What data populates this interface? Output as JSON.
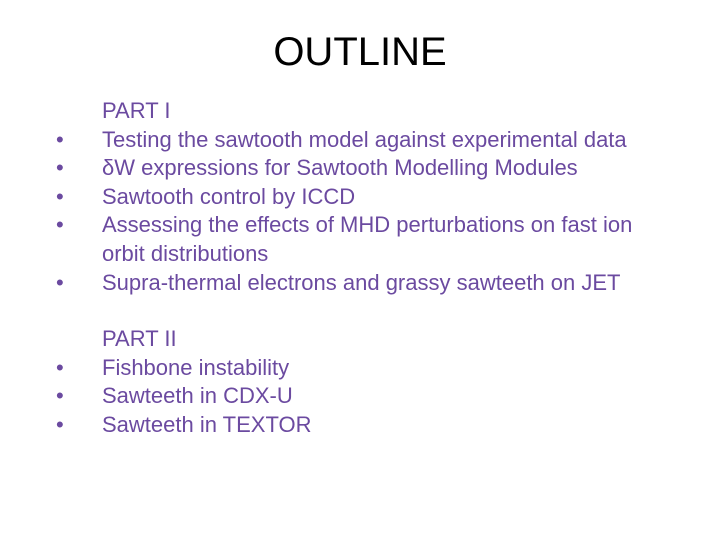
{
  "title": "OUTLINE",
  "colors": {
    "text": "#6b4aa0",
    "title": "#000000",
    "background": "#ffffff"
  },
  "fonts": {
    "title_size": 40,
    "body_size": 22
  },
  "sections": [
    {
      "header": "PART I",
      "items": [
        "Testing the sawtooth model against experimental data",
        "δW expressions for Sawtooth Modelling Modules",
        "Sawtooth control by ICCD",
        "Assessing the effects of MHD perturbations on fast ion orbit distributions",
        "Supra-thermal electrons and grassy sawteeth on JET"
      ]
    },
    {
      "header": "PART II",
      "items": [
        "Fishbone instability",
        "Sawteeth in CDX-U",
        "Sawteeth in TEXTOR"
      ]
    }
  ]
}
